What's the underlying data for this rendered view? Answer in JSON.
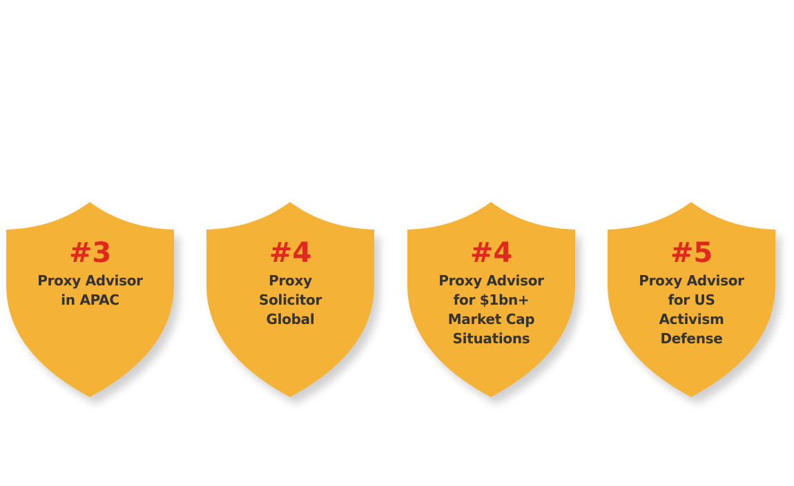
{
  "colors": {
    "shield": "#F4B236",
    "rank": "#E0281E",
    "text": "#333333"
  },
  "badges": [
    {
      "rank": "#3",
      "lines": [
        "Proxy Advisor",
        "in APAC"
      ]
    },
    {
      "rank": "#4",
      "lines": [
        "Proxy",
        "Solicitor",
        "Global"
      ]
    },
    {
      "rank": "#4",
      "lines": [
        "Proxy Advisor",
        "for $1bn+",
        "Market Cap",
        "Situations"
      ]
    },
    {
      "rank": "#5",
      "lines": [
        "Proxy Advisor",
        "for US",
        "Activism",
        "Defense"
      ]
    }
  ]
}
